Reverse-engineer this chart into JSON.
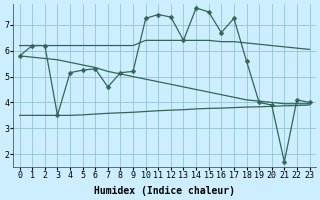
{
  "background_color": "#cceeff",
  "grid_color": "#88bbcc",
  "line_color": "#336655",
  "markersize": 2.5,
  "linewidth": 0.9,
  "xlabel": "Humidex (Indice chaleur)",
  "xlabel_fontsize": 7,
  "tick_fontsize": 6,
  "xlim": [
    -0.5,
    23.5
  ],
  "ylim": [
    1.5,
    7.8
  ],
  "yticks": [
    2,
    3,
    4,
    5,
    6,
    7
  ],
  "xticks": [
    0,
    1,
    2,
    3,
    4,
    5,
    6,
    7,
    8,
    9,
    10,
    11,
    12,
    13,
    14,
    15,
    16,
    17,
    18,
    19,
    20,
    21,
    22,
    23
  ],
  "line_main": {
    "x": [
      0,
      1,
      2,
      3,
      4,
      5,
      6,
      7,
      8,
      9,
      10,
      11,
      12,
      13,
      14,
      15,
      16,
      17,
      18,
      19,
      20,
      21,
      22,
      23
    ],
    "y": [
      5.8,
      6.2,
      6.2,
      3.5,
      5.15,
      5.25,
      5.3,
      4.6,
      5.15,
      5.2,
      7.25,
      7.4,
      7.3,
      6.4,
      7.65,
      7.5,
      6.7,
      7.25,
      5.6,
      4.0,
      3.9,
      1.7,
      4.1,
      4.0
    ]
  },
  "line_upper": {
    "x": [
      0,
      1,
      2,
      3,
      4,
      5,
      6,
      7,
      8,
      9,
      10,
      11,
      12,
      13,
      14,
      15,
      16,
      17,
      18,
      19,
      20,
      21,
      22,
      23
    ],
    "y": [
      6.2,
      6.2,
      6.2,
      6.2,
      6.2,
      6.2,
      6.2,
      6.2,
      6.2,
      6.2,
      6.4,
      6.4,
      6.4,
      6.4,
      6.4,
      6.4,
      6.35,
      6.35,
      6.3,
      6.25,
      6.2,
      6.15,
      6.1,
      6.05
    ]
  },
  "line_mid_upper": {
    "x": [
      0,
      1,
      2,
      3,
      4,
      5,
      6,
      7,
      8,
      9,
      10,
      11,
      12,
      13,
      14,
      15,
      16,
      17,
      18,
      19,
      20,
      21,
      22,
      23
    ],
    "y": [
      5.8,
      5.75,
      5.7,
      5.65,
      5.55,
      5.45,
      5.35,
      5.2,
      5.1,
      5.0,
      4.9,
      4.8,
      4.7,
      4.6,
      4.5,
      4.4,
      4.3,
      4.2,
      4.1,
      4.05,
      4.0,
      3.95,
      3.95,
      3.95
    ]
  },
  "line_lower": {
    "x": [
      0,
      1,
      2,
      3,
      4,
      5,
      6,
      7,
      8,
      9,
      10,
      11,
      12,
      13,
      14,
      15,
      16,
      17,
      18,
      19,
      20,
      21,
      22,
      23
    ],
    "y": [
      3.5,
      3.5,
      3.5,
      3.5,
      3.5,
      3.52,
      3.55,
      3.58,
      3.6,
      3.62,
      3.65,
      3.68,
      3.7,
      3.72,
      3.75,
      3.77,
      3.78,
      3.8,
      3.82,
      3.83,
      3.85,
      3.87,
      3.88,
      3.9
    ]
  }
}
